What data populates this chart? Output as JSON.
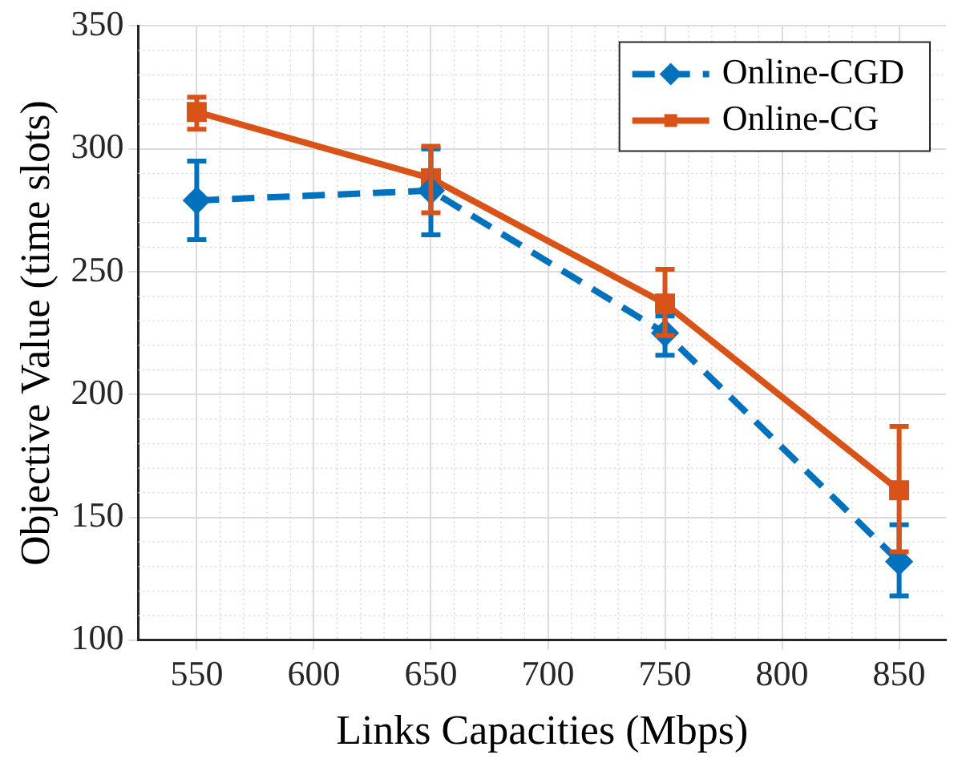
{
  "chart_data": {
    "type": "line",
    "xlabel": "Links Capacities (Mbps)",
    "ylabel": "Objective Value (time slots)",
    "x": [
      550,
      650,
      750,
      850
    ],
    "series": [
      {
        "name": "Online-CGD",
        "color": "#0072bd",
        "values": [
          279,
          283,
          225,
          132
        ],
        "errors": [
          [
            263,
            295
          ],
          [
            265,
            300
          ],
          [
            216,
            232
          ],
          [
            118,
            147
          ]
        ],
        "marker": "diamond",
        "line_style": "dashed"
      },
      {
        "name": "Online-CG",
        "color": "#d95319",
        "values": [
          315,
          288,
          237,
          161
        ],
        "errors": [
          [
            308,
            321
          ],
          [
            274,
            301
          ],
          [
            224,
            251
          ],
          [
            136,
            187
          ]
        ],
        "marker": "square",
        "line_style": "solid"
      }
    ],
    "xlim": [
      525,
      870
    ],
    "xticks": [
      550,
      600,
      650,
      700,
      750,
      800,
      850
    ],
    "ylim": [
      100,
      350
    ],
    "yticks": [
      100,
      150,
      200,
      250,
      300,
      350
    ],
    "grid": true,
    "legend": "top right"
  }
}
